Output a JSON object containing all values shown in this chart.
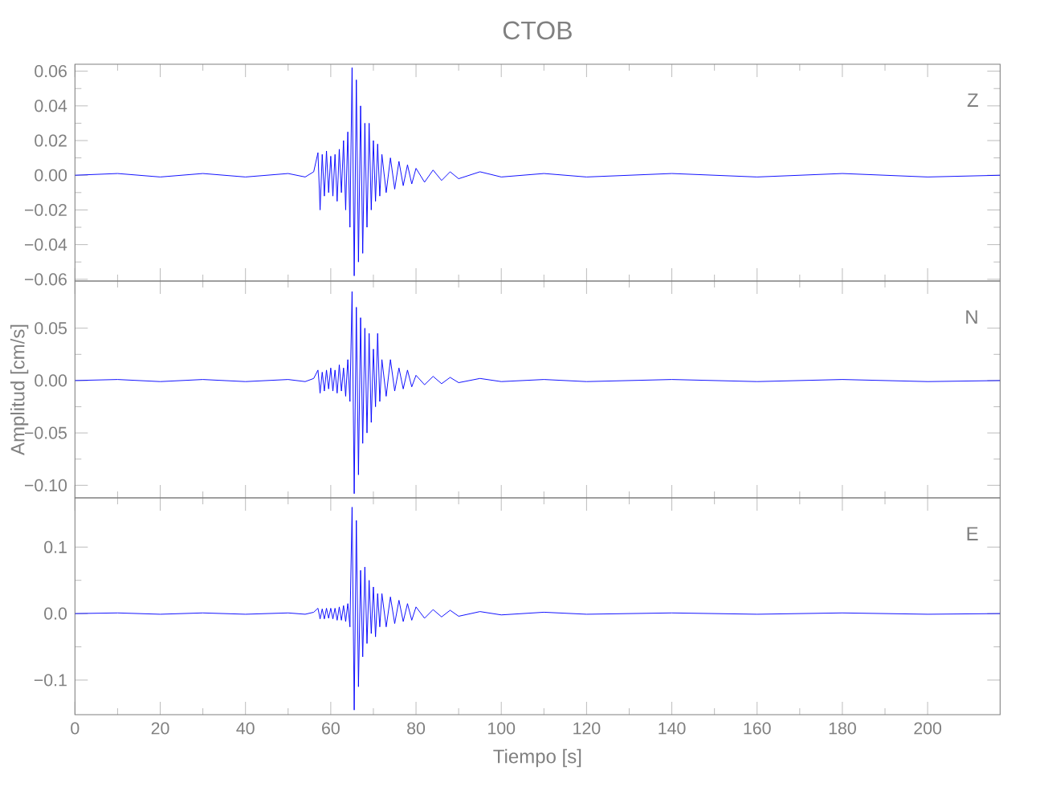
{
  "chart_data": [
    {
      "type": "line",
      "title": "CTOB",
      "color": "#0000ff",
      "tick_labels": "y",
      "annotations": [
        "Z"
      ],
      "x": [
        0,
        10,
        20,
        30,
        40,
        50,
        54,
        56,
        57,
        57.5,
        58,
        58.5,
        59,
        59.5,
        60,
        60.5,
        61,
        61.5,
        62,
        62.5,
        63,
        63.5,
        64,
        64.5,
        65,
        65.5,
        66,
        66.5,
        67,
        67.5,
        68,
        68.5,
        69,
        69.5,
        70,
        70.5,
        71,
        71.5,
        72,
        73,
        74,
        75,
        76,
        77,
        78,
        79,
        80,
        82,
        84,
        86,
        88,
        90,
        95,
        100,
        110,
        120,
        140,
        160,
        180,
        200,
        217
      ],
      "values": [
        0,
        0.001,
        -0.001,
        0.001,
        -0.001,
        0.001,
        -0.001,
        0.002,
        0.013,
        -0.02,
        0.012,
        -0.012,
        0.014,
        -0.01,
        0.011,
        -0.012,
        0.012,
        -0.015,
        0.015,
        -0.01,
        0.02,
        -0.02,
        0.025,
        -0.03,
        0.062,
        -0.058,
        0.055,
        -0.05,
        0.04,
        -0.045,
        0.03,
        -0.03,
        0.03,
        -0.02,
        0.02,
        -0.015,
        0.018,
        -0.012,
        0.012,
        -0.01,
        0.01,
        -0.008,
        0.008,
        -0.006,
        0.006,
        -0.005,
        0.004,
        -0.004,
        0.003,
        -0.003,
        0.002,
        -0.002,
        0.002,
        -0.001,
        0.001,
        -0.001,
        0.001,
        -0.001,
        0.001,
        -0.001,
        0
      ],
      "xlim": [
        0,
        217
      ],
      "xticks": [
        0,
        20,
        40,
        60,
        80,
        100,
        120,
        140,
        160,
        180,
        200
      ],
      "ylim": [
        -0.061,
        0.064
      ],
      "yticks": [
        {
          "value": -0.06,
          "label": "−0.06"
        },
        {
          "value": -0.04,
          "label": "−0.04"
        },
        {
          "value": -0.02,
          "label": "−0.02"
        },
        {
          "value": 0,
          "label": "0.00"
        },
        {
          "value": 0.02,
          "label": "0.02"
        },
        {
          "value": 0.04,
          "label": "0.04"
        },
        {
          "value": 0.06,
          "label": "0.06"
        }
      ]
    },
    {
      "type": "line",
      "ylabel": "Amplitud  [cm/s]",
      "color": "#0000ff",
      "tick_labels": "y",
      "annotations": [
        "N"
      ],
      "x": [
        0,
        10,
        20,
        30,
        40,
        50,
        54,
        56,
        57,
        57.5,
        58,
        58.5,
        59,
        59.5,
        60,
        60.5,
        61,
        61.5,
        62,
        62.5,
        63,
        63.5,
        64,
        64.5,
        65,
        65.5,
        66,
        66.5,
        67,
        67.5,
        68,
        68.5,
        69,
        69.5,
        70,
        70.5,
        71,
        71.5,
        72,
        73,
        74,
        75,
        76,
        77,
        78,
        79,
        80,
        82,
        84,
        86,
        88,
        90,
        95,
        100,
        110,
        120,
        140,
        160,
        180,
        200,
        217
      ],
      "values": [
        0,
        0.001,
        -0.001,
        0.001,
        -0.001,
        0.001,
        -0.001,
        0.002,
        0.01,
        -0.012,
        0.008,
        -0.01,
        0.01,
        -0.008,
        0.012,
        -0.01,
        0.01,
        -0.012,
        0.015,
        -0.01,
        0.012,
        -0.015,
        0.02,
        -0.02,
        0.085,
        -0.108,
        0.07,
        -0.09,
        0.06,
        -0.06,
        0.05,
        -0.05,
        0.045,
        -0.04,
        0.03,
        -0.025,
        0.045,
        -0.02,
        0.02,
        -0.015,
        0.02,
        -0.01,
        0.012,
        -0.008,
        0.01,
        -0.006,
        0.005,
        -0.004,
        0.004,
        -0.003,
        0.003,
        -0.002,
        0.002,
        -0.001,
        0.001,
        -0.001,
        0.001,
        -0.001,
        0.001,
        -0.001,
        0
      ],
      "xlim": [
        0,
        217
      ],
      "xticks": [
        0,
        20,
        40,
        60,
        80,
        100,
        120,
        140,
        160,
        180,
        200
      ],
      "ylim": [
        -0.112,
        0.095
      ],
      "yticks": [
        {
          "value": -0.1,
          "label": "−0.10"
        },
        {
          "value": -0.05,
          "label": "−0.05"
        },
        {
          "value": 0,
          "label": "0.00"
        },
        {
          "value": 0.05,
          "label": "0.05"
        }
      ]
    },
    {
      "type": "line",
      "xlabel": "Tiempo  [s]",
      "color": "#0000ff",
      "annotations": [
        "E"
      ],
      "x": [
        0,
        10,
        20,
        30,
        40,
        50,
        54,
        56,
        57,
        57.5,
        58,
        58.5,
        59,
        59.5,
        60,
        60.5,
        61,
        61.5,
        62,
        62.5,
        63,
        63.5,
        64,
        64.5,
        65,
        65.5,
        66,
        66.5,
        67,
        67.5,
        68,
        68.5,
        69,
        69.5,
        70,
        70.5,
        71,
        71.5,
        72,
        73,
        74,
        75,
        76,
        77,
        78,
        79,
        80,
        82,
        84,
        86,
        88,
        90,
        95,
        100,
        110,
        120,
        140,
        160,
        180,
        200,
        217
      ],
      "values": [
        0,
        0.001,
        -0.001,
        0.001,
        -0.001,
        0.001,
        -0.001,
        0.002,
        0.008,
        -0.008,
        0.007,
        -0.008,
        0.008,
        -0.007,
        0.008,
        -0.008,
        0.008,
        -0.01,
        0.01,
        -0.01,
        0.012,
        -0.012,
        0.015,
        -0.02,
        0.16,
        -0.145,
        0.14,
        -0.11,
        0.065,
        -0.065,
        0.07,
        -0.045,
        0.05,
        -0.03,
        0.04,
        -0.035,
        0.03,
        -0.02,
        0.03,
        -0.02,
        0.025,
        -0.015,
        0.02,
        -0.012,
        0.015,
        -0.01,
        0.01,
        -0.007,
        0.006,
        -0.005,
        0.005,
        -0.004,
        0.003,
        -0.002,
        0.002,
        -0.001,
        0.001,
        -0.001,
        0.001,
        -0.001,
        0
      ],
      "xlim": [
        0,
        217
      ],
      "xticks": [
        0,
        20,
        40,
        60,
        80,
        100,
        120,
        140,
        160,
        180,
        200
      ],
      "ylim": [
        -0.152,
        0.174
      ],
      "yticks": [
        {
          "value": -0.1,
          "label": "−0.1"
        },
        {
          "value": 0,
          "label": "0.0"
        },
        {
          "value": 0.1,
          "label": "0.1"
        }
      ]
    }
  ]
}
